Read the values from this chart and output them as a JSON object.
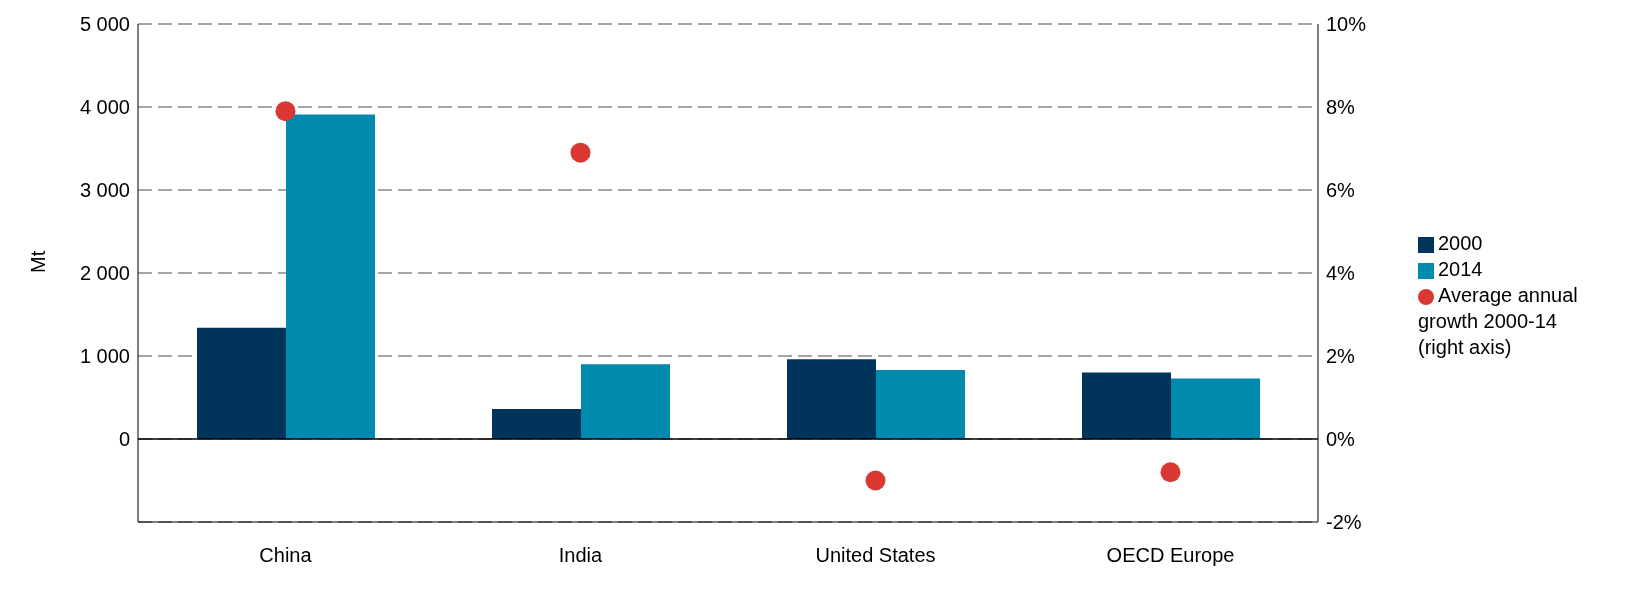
{
  "chart_data": {
    "type": "bar",
    "ylabel": "Mt",
    "categories": [
      "China",
      "India",
      "United States",
      "OECD Europe"
    ],
    "series": [
      {
        "name": "2000",
        "color": "#00345b",
        "values": [
          1340,
          360,
          960,
          800
        ]
      },
      {
        "name": "2014",
        "color": "#008aad",
        "values": [
          3910,
          900,
          830,
          730
        ]
      },
      {
        "name": "Average annual growth 2000-14 (right axis)",
        "type": "scatter",
        "axis": "y2",
        "color": "#d93932",
        "values": [
          7.9,
          6.9,
          -1.0,
          -0.8
        ]
      }
    ],
    "ylim": [
      -1000,
      5000
    ],
    "yticks": [
      {
        "value": 0,
        "label": "0"
      },
      {
        "value": 1000,
        "label": "1 000"
      },
      {
        "value": 2000,
        "label": "2 000"
      },
      {
        "value": 3000,
        "label": "3 000"
      },
      {
        "value": 4000,
        "label": "4 000"
      },
      {
        "value": 5000,
        "label": "5 000"
      }
    ],
    "y2lim": [
      -2,
      10
    ],
    "y2ticks": [
      {
        "value": -2,
        "label": "-2%"
      },
      {
        "value": 0,
        "label": "0%"
      },
      {
        "value": 2,
        "label": "2%"
      },
      {
        "value": 4,
        "label": "4%"
      },
      {
        "value": 6,
        "label": "6%"
      },
      {
        "value": 8,
        "label": "8%"
      },
      {
        "value": 10,
        "label": "10%"
      }
    ],
    "ref_lines": [
      {
        "axis": "y",
        "value": 0,
        "color": "#000000"
      }
    ],
    "grid": "y",
    "legend": "right",
    "marker": "circle"
  }
}
